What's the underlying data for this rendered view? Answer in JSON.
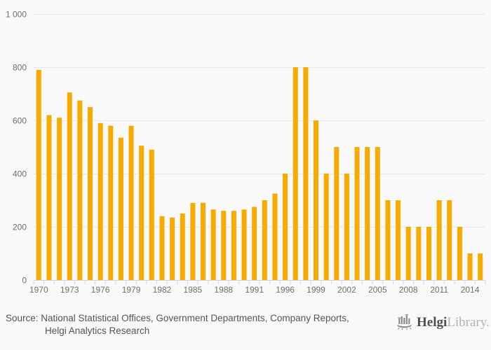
{
  "chart_data": {
    "type": "bar",
    "title": "",
    "xlabel": "",
    "ylabel": "",
    "categories": [
      "1970",
      "1971",
      "1972",
      "1973",
      "1974",
      "1975",
      "1976",
      "1977",
      "1978",
      "1979",
      "1980",
      "1981",
      "1982",
      "1983",
      "1984",
      "1985",
      "1986",
      "1987",
      "1988",
      "1989",
      "1990",
      "1991",
      "1992",
      "1995",
      "1996",
      "1997",
      "1998",
      "1999",
      "2000",
      "2001",
      "2002",
      "2003",
      "2004",
      "2005",
      "2006",
      "2007",
      "2008",
      "2009",
      "2010",
      "2011",
      "2012",
      "2013",
      "2014",
      "2015"
    ],
    "values": [
      790,
      620,
      610,
      705,
      675,
      650,
      590,
      580,
      535,
      580,
      505,
      490,
      240,
      235,
      250,
      290,
      290,
      265,
      260,
      260,
      265,
      275,
      300,
      325,
      400,
      800,
      800,
      600,
      400,
      500,
      400,
      500,
      500,
      500,
      300,
      300,
      200,
      200,
      200,
      300,
      300,
      200,
      100,
      100
    ],
    "ylim": [
      0,
      1000
    ],
    "yticks": [
      0,
      200,
      400,
      600,
      800,
      1000
    ],
    "ytick_labels": [
      "0",
      "200",
      "400",
      "600",
      "800",
      "1 000"
    ],
    "xtick_step": 3,
    "visible_x_labels": [
      "1970",
      "1973",
      "1976",
      "1979",
      "1982",
      "1985",
      "1988",
      "1991",
      "1996",
      "1999",
      "2002",
      "2005",
      "2008",
      "2011",
      "2014"
    ],
    "grid": "horizontal",
    "legend": "none"
  },
  "footer": {
    "source_line1": "Source: National Statistical Offices, Government Departments, Company Reports,",
    "source_line2": "Helgi Analytics Research",
    "logo": {
      "brand_bold": "Helgi",
      "brand_light": "Library."
    }
  },
  "colors": {
    "background": "#f9f9f9",
    "bar": "#F7AB00",
    "gridline": "#e7e7e7",
    "axis": "#c9d6ea",
    "tick_label": "#6e6e6e",
    "source_text": "#545454",
    "logo_dark": "#4f4f4f",
    "logo_light": "#b3b3b3",
    "logo_icon": "#8c8c8c"
  }
}
